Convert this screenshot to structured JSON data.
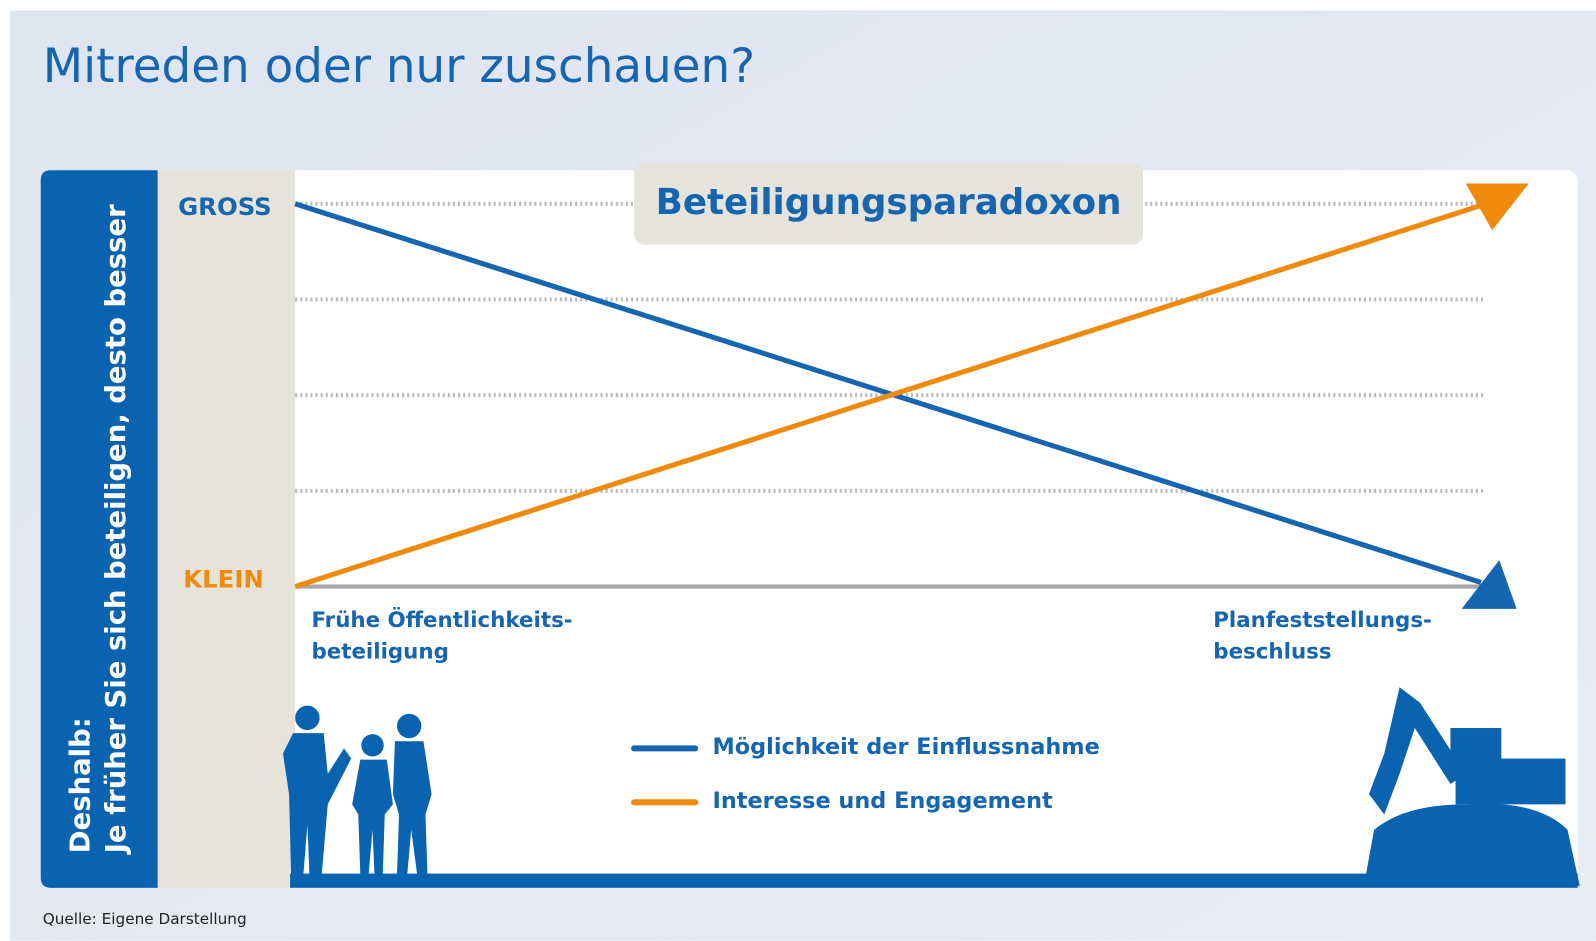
{
  "header": {
    "title": "Mitreden oder nur zuschauen?"
  },
  "diagram": {
    "title": "Beteiligungsparadoxon",
    "side_label": [
      "Deshalb:",
      "Je früher Sie sich beteiligen, desto besser"
    ],
    "y_labels": {
      "top": "GROSS",
      "bottom": "KLEIN"
    },
    "x_labels": {
      "start": [
        "Frühe Öffentlichkeits-",
        "beteiligung"
      ],
      "end": [
        "Planfeststellungs-",
        "beschluss"
      ]
    },
    "legend": [
      "Möglichkeit der Einflussnahme",
      "Interesse und Engagement"
    ]
  },
  "footer": {
    "source": "Quelle: Eigene Darstellung"
  }
}
